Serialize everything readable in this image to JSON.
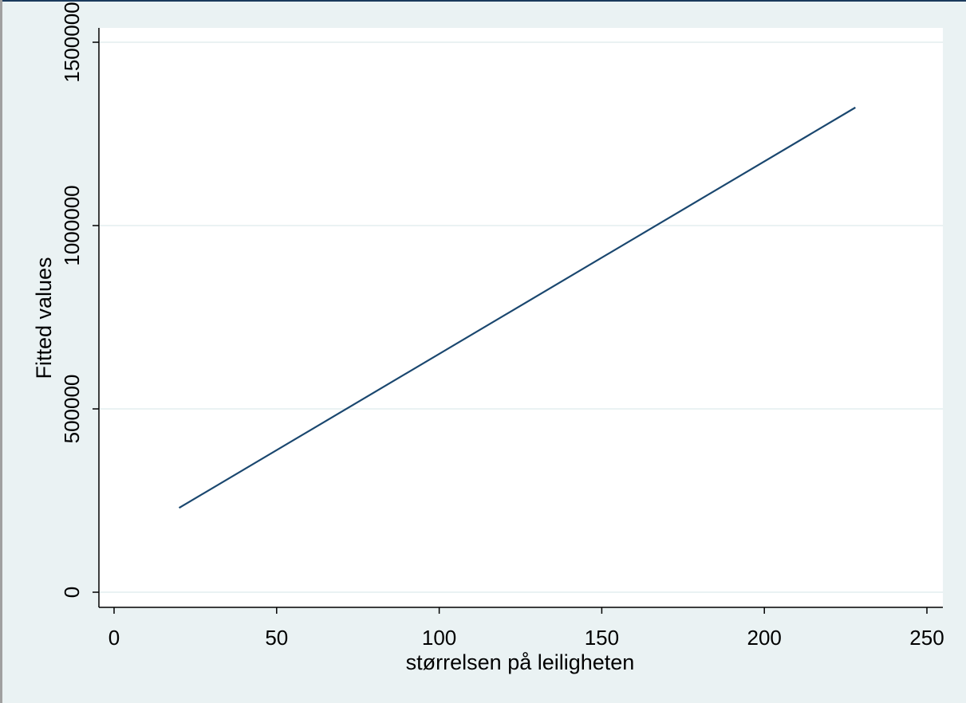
{
  "colors": {
    "background": "#eaf2f3",
    "plot_area": "#ffffff",
    "gridline": "#eaf2f3",
    "series_line": "#1a476f",
    "axis": "#000000"
  },
  "chart_data": {
    "type": "line",
    "xlabel": "størrelsen på leiligheten",
    "ylabel": "Fitted values",
    "xlim": [
      0,
      250
    ],
    "ylim": [
      0,
      1500000
    ],
    "x_ticks": [
      0,
      50,
      100,
      150,
      200,
      250
    ],
    "y_ticks": [
      0,
      500000,
      1000000,
      1500000
    ],
    "x_tick_labels": [
      "0",
      "50",
      "100",
      "150",
      "200",
      "250"
    ],
    "y_tick_labels": [
      "0",
      "500000",
      "1000000",
      "1500000"
    ],
    "grid": "horizontal",
    "legend": "none",
    "series": [
      {
        "x": [
          20,
          228
        ],
        "y": [
          230000,
          1322000
        ]
      }
    ]
  }
}
